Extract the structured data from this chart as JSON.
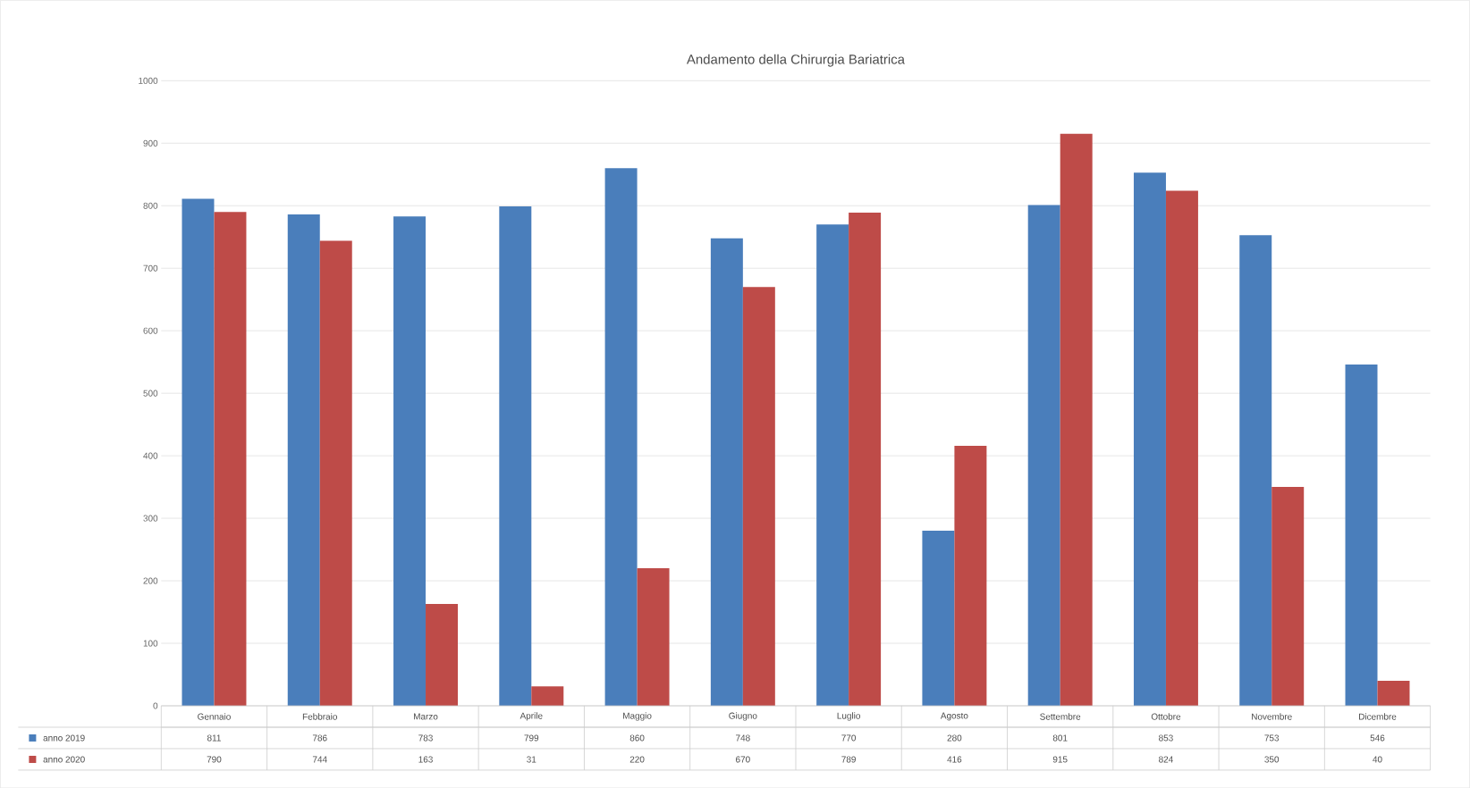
{
  "chart_data": {
    "type": "bar",
    "title": "Andamento della Chirurgia Bariatrica",
    "categories": [
      "Gennaio",
      "Febbraio",
      "Marzo",
      "Aprile",
      "Maggio",
      "Giugno",
      "Luglio",
      "Agosto",
      "Settembre",
      "Ottobre",
      "Novembre",
      "Dicembre"
    ],
    "series": [
      {
        "name": "anno 2019",
        "color": "#4a7ebb",
        "values": [
          811,
          786,
          783,
          799,
          860,
          748,
          770,
          280,
          801,
          853,
          753,
          546
        ]
      },
      {
        "name": "anno 2020",
        "color": "#be4b48",
        "values": [
          790,
          744,
          163,
          31,
          220,
          670,
          789,
          416,
          915,
          824,
          350,
          40
        ]
      }
    ],
    "ylim": [
      0,
      1000
    ],
    "yticks": [
      0,
      100,
      200,
      300,
      400,
      500,
      600,
      700,
      800,
      900,
      1000
    ],
    "grid": "y",
    "legend": "bottom",
    "data_labels": true
  }
}
